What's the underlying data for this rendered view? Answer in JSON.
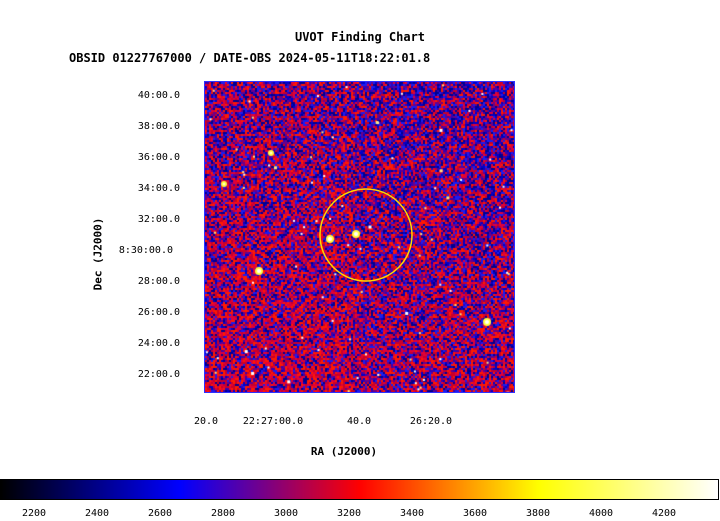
{
  "header": {
    "title": "UVOT Finding Chart",
    "subtitle": "OBSID 01227767000 / DATE-OBS 2024-05-11T18:22:01.8"
  },
  "axes": {
    "xlabel": "RA (J2000)",
    "ylabel": "Dec (J2000)",
    "y_ticks": [
      "40:00.0",
      "38:00.0",
      "36:00.0",
      "34:00.0",
      "32:00.0",
      "8:30:00.0",
      "28:00.0",
      "26:00.0",
      "24:00.0",
      "22:00.0"
    ],
    "x_ticks": [
      "20.0",
      "22:27:00.0",
      "40.0",
      "26:20.0"
    ]
  },
  "colorbar": {
    "ticks": [
      "2200",
      "2400",
      "2600",
      "2800",
      "3000",
      "3200",
      "3400",
      "3600",
      "3800",
      "4000",
      "4200"
    ],
    "colors": [
      "#000000",
      "#0000ff",
      "#ff0000",
      "#ffff00",
      "#ffffff"
    ]
  },
  "overlay": {
    "circle_color": "#ffd700",
    "background_color": "#1a1aa8"
  }
}
